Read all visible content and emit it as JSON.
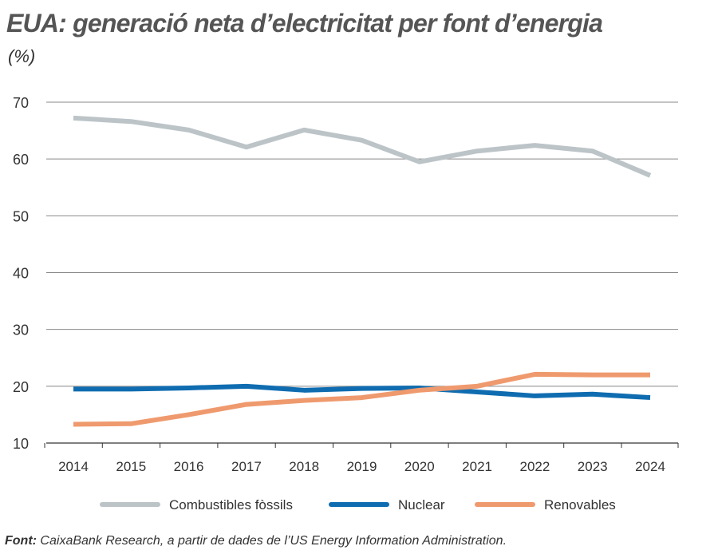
{
  "chart_data": {
    "type": "line",
    "title": "EUA: generació neta d’electricitat per font d’energia",
    "subtitle": "(%)",
    "xlabel": "",
    "ylabel": "",
    "x": [
      "2014",
      "2015",
      "2016",
      "2017",
      "2018",
      "2019",
      "2020",
      "2021",
      "2022",
      "2023",
      "2024"
    ],
    "ylim": [
      10,
      70
    ],
    "yticks": [
      10,
      20,
      30,
      40,
      50,
      60,
      70
    ],
    "grid": true,
    "legend_position": "bottom",
    "series": [
      {
        "name": "Combustibles fòssils",
        "color": "#bcc4c8",
        "values": [
          67.2,
          66.6,
          65.1,
          62.1,
          65.1,
          63.3,
          59.5,
          61.4,
          62.4,
          61.4,
          57.1
        ]
      },
      {
        "name": "Nuclear",
        "color": "#0f6cb0",
        "values": [
          19.5,
          19.5,
          19.7,
          20.0,
          19.3,
          19.6,
          19.7,
          19.0,
          18.3,
          18.6,
          18.0
        ]
      },
      {
        "name": "Renovables",
        "color": "#ef9a6e",
        "values": [
          13.3,
          13.4,
          15.0,
          16.8,
          17.5,
          18.0,
          19.3,
          20.0,
          22.1,
          22.0,
          22.0
        ]
      }
    ]
  },
  "source": {
    "label": "Font:",
    "text": " CaixaBank Research, a partir de dades de l’US Energy Information Administration."
  }
}
